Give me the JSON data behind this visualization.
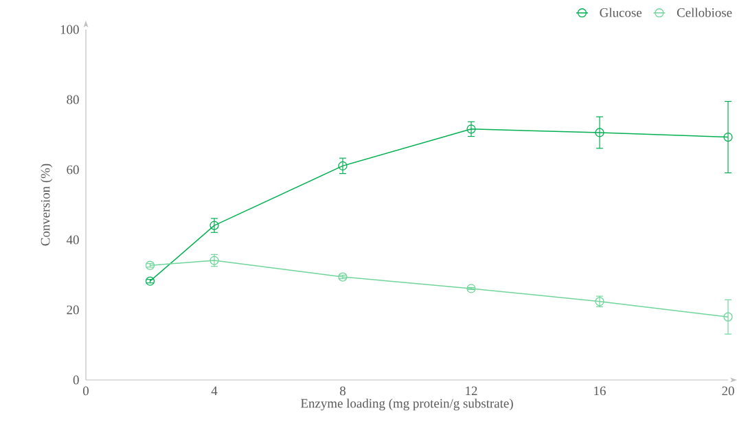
{
  "chart_data": {
    "type": "line",
    "xlabel": "Enzyme loading (mg protein/g substrate)",
    "ylabel": "Conversion (%)",
    "x": [
      2,
      4,
      8,
      12,
      16,
      20
    ],
    "series": [
      {
        "name": "Glucose",
        "color": "#00b050",
        "values": [
          28.2,
          44.1,
          61.1,
          71.6,
          70.6,
          69.3
        ],
        "errors": [
          0.5,
          2,
          2.2,
          2.1,
          4.5,
          10.2
        ]
      },
      {
        "name": "Cellobiose",
        "color": "#6fd59a",
        "values": [
          32.7,
          34.1,
          29.4,
          26.1,
          22.4,
          18.0
        ],
        "errors": [
          0.5,
          1.7,
          0.5,
          0.3,
          1.5,
          4.9
        ]
      }
    ],
    "xlim": [
      0,
      20
    ],
    "xticks": [
      0,
      4,
      8,
      12,
      16,
      20
    ],
    "ylim": [
      0,
      100
    ],
    "yticks": [
      0,
      20,
      40,
      60,
      80,
      100
    ],
    "grid": false,
    "legend": "top right",
    "marker": "circle",
    "line_style": "solid"
  }
}
